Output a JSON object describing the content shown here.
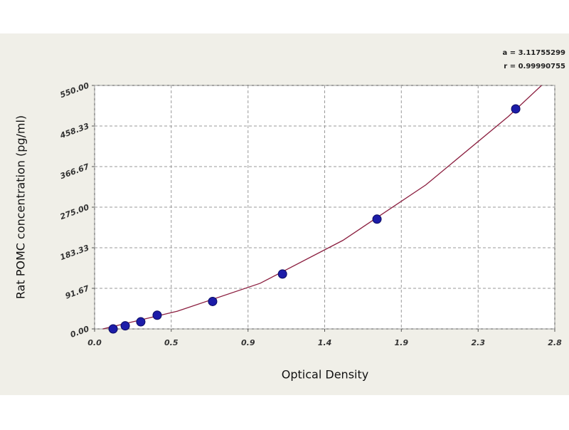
{
  "chart_data": {
    "type": "scatter",
    "xlabel": "Optical Density",
    "ylabel": "Rat POMC concentration (pg/ml)",
    "annotations": [
      "a = 3.11755299",
      "r = 0.99990755"
    ],
    "xlim": [
      0,
      2.78
    ],
    "ylim": [
      0,
      550
    ],
    "xticks": [
      {
        "value": 0,
        "label": "0.0"
      },
      {
        "value": 0.463,
        "label": "0.5"
      },
      {
        "value": 0.927,
        "label": "0.9"
      },
      {
        "value": 1.39,
        "label": "1.4"
      },
      {
        "value": 1.853,
        "label": "1.9"
      },
      {
        "value": 2.317,
        "label": "2.3"
      },
      {
        "value": 2.78,
        "label": "2.8"
      }
    ],
    "yticks": [
      {
        "value": 0,
        "label": "0.00"
      },
      91.67,
      183.33,
      {
        "value": 275,
        "label": "275.00"
      },
      366.67,
      458.33,
      {
        "value": 550,
        "label": "550.00"
      }
    ],
    "grid": true,
    "series": [
      {
        "mode": "line",
        "color": "#8b1e3f",
        "x": [
          0.05,
          0.5,
          1.0,
          1.5,
          2.0,
          2.5,
          2.7
        ],
        "values": [
          0,
          40,
          103,
          200,
          325,
          480,
          550
        ]
      },
      {
        "mode": "markers",
        "color": "#1c1ca8",
        "x": [
          0.112,
          0.185,
          0.279,
          0.378,
          0.713,
          1.135,
          1.706,
          2.544
        ],
        "values": [
          0,
          7,
          16,
          31,
          62,
          124,
          248,
          497
        ]
      }
    ]
  }
}
